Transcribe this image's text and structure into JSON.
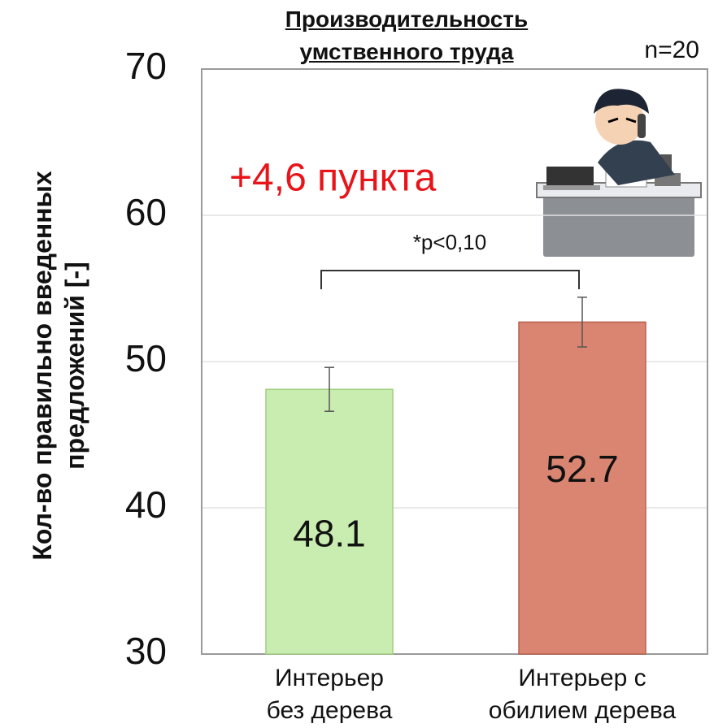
{
  "chart_data": {
    "type": "bar",
    "title": "Производительность\nумственного труда",
    "sample_size": "n=20",
    "annotation": "+4,6 пункта",
    "significance": "*p<0,10",
    "y_label": "Кол-во правильно введенных\nпредложений [-]",
    "categories": [
      "Интерьер\nбез дерева",
      "Интерьер с\nобилием дерева"
    ],
    "values": [
      48.1,
      52.7
    ],
    "errors": [
      1.5,
      1.7
    ],
    "colors": [
      "#c9ecb0",
      "#d98572"
    ],
    "edge_colors": [
      "#9fcf80",
      "#b8604e"
    ],
    "annotation_color": "#e8141a",
    "ylim": [
      30,
      70
    ],
    "yticks": [
      30,
      40,
      50,
      60,
      70
    ],
    "grid": true
  }
}
